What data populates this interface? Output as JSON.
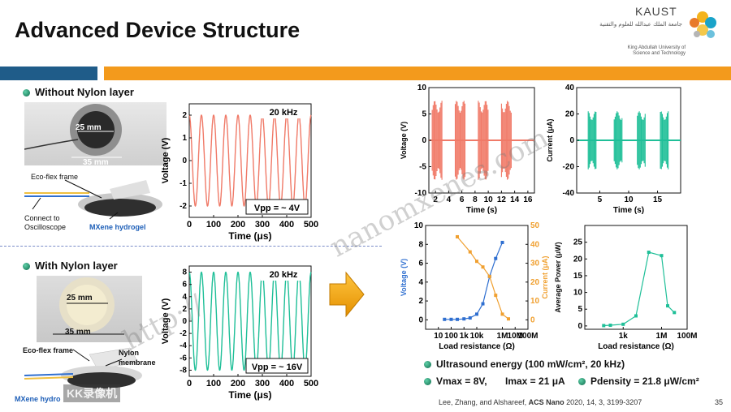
{
  "slide": {
    "title": "Advanced Device Structure",
    "page_number": "35",
    "citation_authors": "Lee, Zhang, and Alshareef,",
    "citation_journal": "ACS Nano",
    "citation_details": "2020, 14, 3, 3199-3207"
  },
  "logo": {
    "word": "KAUST",
    "arabic": "جامعة الملك عبدالله للعلوم والتقنية",
    "english_line1": "King Abdullah University of",
    "english_line2": "Science and Technology"
  },
  "watermark": {
    "text1": "nanomxenes.com",
    "text2": "http://",
    "stamp": "KK录像机"
  },
  "colors": {
    "salmon": "#f07a68",
    "teal": "#1fbf98",
    "blue": "#2f6fd0",
    "orange": "#f0a030",
    "header_blue": "#1f5c89",
    "header_orange": "#f39a1c"
  },
  "without": {
    "heading": "Without Nylon layer",
    "dim_inner": "25 mm",
    "dim_outer": "35 mm",
    "label_frame": "Eco-flex frame",
    "label_connect1": "Connect to",
    "label_connect2": "Oscilloscope",
    "label_hydrogel": "MXene hydrogel"
  },
  "with": {
    "heading": "With Nylon layer",
    "dim_inner": "25 mm",
    "dim_outer": "35 mm",
    "label_frame": "Eco-flex frame",
    "label_nylon1": "Nylon",
    "label_nylon2": "membrane",
    "label_hydrogel": "MXene hydro"
  },
  "results": {
    "line1": "Ultrasound energy (100 mW/cm², 20 kHz)",
    "vmax": "Vmax = 8V,",
    "imax": "Imax = 21 μA",
    "pdensity": "Pdensity = 21.8 μW/cm²"
  },
  "chart_data": [
    {
      "id": "wave-without",
      "type": "line",
      "annotation": "20 kHz",
      "vpp_label": "Vpp = ~ 4V",
      "xlabel": "Time (μs)",
      "ylabel": "Voltage (V)",
      "xlim": [
        0,
        500
      ],
      "ylim": [
        -2.5,
        2.5
      ],
      "xticks": [
        "0",
        "100",
        "200",
        "300",
        "400",
        "500"
      ],
      "yticks": [
        "2",
        "1",
        "0",
        "-1",
        "-2"
      ],
      "amplitude": 2,
      "frequency_khz": 20,
      "color": "#f07a68"
    },
    {
      "id": "wave-with",
      "type": "line",
      "annotation": "20 kHz",
      "vpp_label": "Vpp = ~ 16V",
      "xlabel": "Time (μs)",
      "ylabel": "Voltage (V)",
      "xlim": [
        0,
        500
      ],
      "ylim": [
        -9,
        9
      ],
      "xticks": [
        "0",
        "100",
        "200",
        "300",
        "400",
        "500"
      ],
      "yticks": [
        "8",
        "6",
        "4",
        "2",
        "0",
        "-2",
        "-4",
        "-6",
        "-8"
      ],
      "amplitude": 8,
      "frequency_khz": 20,
      "color": "#1fbf98"
    },
    {
      "id": "voltage-bursts",
      "type": "line",
      "xlabel": "Time (s)",
      "ylabel": "Voltage (V)",
      "xlim": [
        1,
        17
      ],
      "ylim": [
        -10,
        10
      ],
      "xticks": [
        "2",
        "4",
        "6",
        "8",
        "10",
        "12",
        "14",
        "16"
      ],
      "yticks": [
        "10",
        "5",
        "0",
        "-5",
        "-10"
      ],
      "bursts": [
        [
          1.5,
          3.0
        ],
        [
          5.0,
          6.5
        ],
        [
          8.5,
          10.0
        ],
        [
          12.0,
          13.5
        ]
      ],
      "burst_amplitude": 7.5,
      "color": "#f07a68"
    },
    {
      "id": "current-bursts",
      "type": "line",
      "xlabel": "Time (s)",
      "ylabel": "Current (μA)",
      "xlim": [
        1,
        19
      ],
      "ylim": [
        -40,
        40
      ],
      "xticks": [
        "5",
        "10",
        "15"
      ],
      "yticks": [
        "40",
        "20",
        "0",
        "-20",
        "-40"
      ],
      "bursts": [
        [
          3.0,
          4.5
        ],
        [
          7.5,
          9.0
        ],
        [
          11.5,
          13.0
        ],
        [
          15.5,
          17.0
        ]
      ],
      "burst_amplitude": 22,
      "color": "#1fbf98"
    },
    {
      "id": "load-dual",
      "type": "line",
      "xlabel": "Load resistance (Ω)",
      "ylabel": "Voltage (V)",
      "ylabel_right": "Current (μA)",
      "xlim_log": [
        1,
        100000000.0
      ],
      "xticks": [
        "10",
        "100",
        "1k",
        "10k",
        "1M",
        "10M",
        "100M"
      ],
      "ylim": [
        -1,
        10
      ],
      "ylim_right": [
        -5,
        50
      ],
      "yticks": [
        "10",
        "8",
        "6",
        "4",
        "2",
        "0"
      ],
      "yticks_right": [
        "50",
        "40",
        "30",
        "20",
        "10",
        "0"
      ],
      "series": [
        {
          "name": "Voltage",
          "color": "#2f6fd0",
          "x": [
            30,
            100,
            300,
            1000,
            3000,
            10000,
            30000,
            100000,
            300000,
            1000000
          ],
          "y": [
            0.05,
            0.05,
            0.05,
            0.1,
            0.2,
            0.6,
            1.7,
            4.6,
            6.5,
            8.2
          ]
        },
        {
          "name": "Current",
          "color": "#f0a030",
          "x": [
            300,
            3000,
            10000,
            30000,
            100000,
            300000,
            1000000,
            3000000
          ],
          "y": [
            44,
            36,
            31,
            28,
            23,
            13,
            3,
            0.5
          ]
        }
      ]
    },
    {
      "id": "power",
      "type": "line",
      "xlabel": "Load resistance (Ω)",
      "ylabel": "Average Power (μW)",
      "xlim_log": [
        1,
        100000000.0
      ],
      "xticks": [
        "1k",
        "1M",
        "100M"
      ],
      "ylim": [
        -1,
        30
      ],
      "yticks": [
        "25",
        "20",
        "15",
        "10",
        "5",
        "0"
      ],
      "series": [
        {
          "name": "",
          "color": "#1fbf98",
          "x": [
            30,
            100,
            1000,
            10000,
            100000,
            1000000,
            3000000,
            10000000
          ],
          "y": [
            0.1,
            0.2,
            0.5,
            3.0,
            22,
            21,
            6,
            4
          ]
        }
      ]
    }
  ]
}
